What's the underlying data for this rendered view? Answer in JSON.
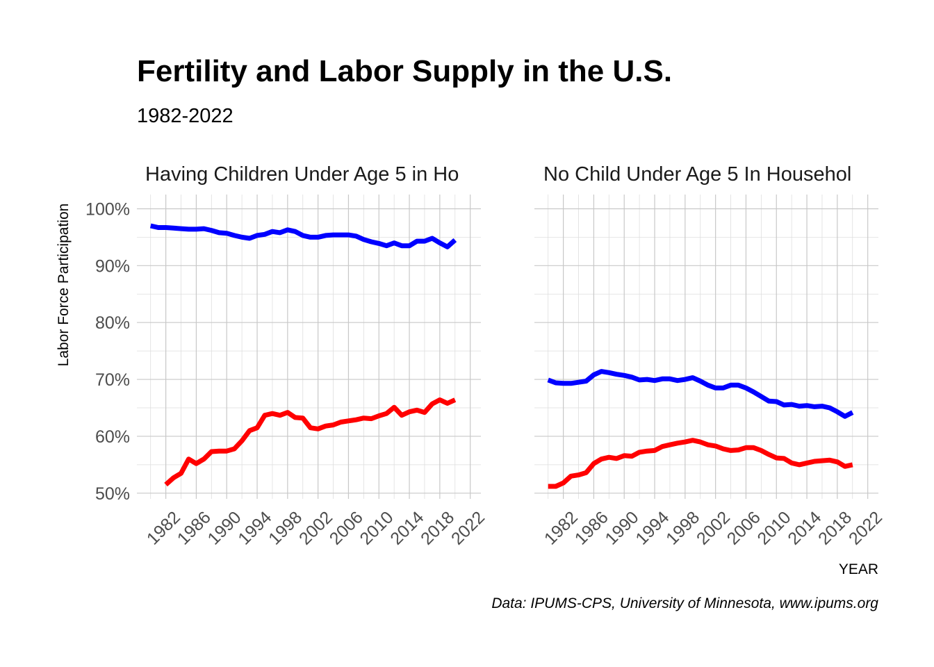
{
  "title": "Fertility and Labor Supply in the U.S.",
  "subtitle": "1982-2022",
  "caption": "Data: IPUMS-CPS, University of Minnesota, www.ipums.org",
  "chart_data": {
    "type": "line",
    "xlabel": "YEAR",
    "ylabel": "Labor Force Participation",
    "ylim": [
      0.49,
      1.025
    ],
    "xlim": [
      1978.2,
      2023.4
    ],
    "y_ticks": [
      {
        "value": 0.5,
        "label": "50%"
      },
      {
        "value": 0.6,
        "label": "60%"
      },
      {
        "value": 0.7,
        "label": "70%"
      },
      {
        "value": 0.8,
        "label": "80%"
      },
      {
        "value": 0.9,
        "label": "90%"
      },
      {
        "value": 1.0,
        "label": "100%"
      }
    ],
    "x_ticks": [
      {
        "value": 1982,
        "label": "1982"
      },
      {
        "value": 1986,
        "label": "1986"
      },
      {
        "value": 1990,
        "label": "1990"
      },
      {
        "value": 1994,
        "label": "1994"
      },
      {
        "value": 1998,
        "label": "1998"
      },
      {
        "value": 2002,
        "label": "2002"
      },
      {
        "value": 2006,
        "label": "2006"
      },
      {
        "value": 2010,
        "label": "2010"
      },
      {
        "value": 2014,
        "label": "2014"
      },
      {
        "value": 2018,
        "label": "2018"
      },
      {
        "value": 2022,
        "label": "2022"
      }
    ],
    "grid": true,
    "legend": "none",
    "panels": [
      {
        "label": "Having Children Under Age 5 in Ho",
        "series": [
          {
            "color": "#0000ff",
            "x": [
              1980,
              1981,
              1982,
              1983,
              1984,
              1985,
              1986,
              1987,
              1988,
              1989,
              1990,
              1991,
              1992,
              1993,
              1994,
              1995,
              1996,
              1997,
              1998,
              1999,
              2000,
              2001,
              2002,
              2003,
              2004,
              2005,
              2006,
              2007,
              2008,
              2009,
              2010,
              2011,
              2012,
              2013,
              2014,
              2015,
              2016,
              2017,
              2018,
              2019,
              2020
            ],
            "y": [
              0.97,
              0.967,
              0.967,
              0.966,
              0.965,
              0.964,
              0.964,
              0.965,
              0.962,
              0.958,
              0.957,
              0.953,
              0.95,
              0.948,
              0.953,
              0.955,
              0.96,
              0.958,
              0.963,
              0.96,
              0.953,
              0.95,
              0.95,
              0.953,
              0.954,
              0.954,
              0.954,
              0.952,
              0.946,
              0.942,
              0.939,
              0.935,
              0.94,
              0.935,
              0.935,
              0.943,
              0.943,
              0.948,
              0.94,
              0.933,
              0.945
            ]
          },
          {
            "color": "#ff0000",
            "x": [
              1982,
              1983,
              1984,
              1985,
              1986,
              1987,
              1988,
              1989,
              1990,
              1991,
              1992,
              1993,
              1994,
              1995,
              1996,
              1997,
              1998,
              1999,
              2000,
              2001,
              2002,
              2003,
              2004,
              2005,
              2006,
              2007,
              2008,
              2009,
              2010,
              2011,
              2012,
              2013,
              2014,
              2015,
              2016,
              2017,
              2018,
              2019,
              2020
            ],
            "y": [
              0.515,
              0.527,
              0.535,
              0.56,
              0.552,
              0.56,
              0.573,
              0.574,
              0.574,
              0.578,
              0.592,
              0.61,
              0.615,
              0.637,
              0.64,
              0.637,
              0.642,
              0.633,
              0.632,
              0.615,
              0.613,
              0.618,
              0.62,
              0.625,
              0.627,
              0.629,
              0.632,
              0.631,
              0.636,
              0.64,
              0.651,
              0.637,
              0.643,
              0.646,
              0.642,
              0.657,
              0.664,
              0.658,
              0.664
            ]
          }
        ]
      },
      {
        "label": "No Child Under Age 5 In Househol",
        "series": [
          {
            "color": "#0000ff",
            "x": [
              1980,
              1981,
              1982,
              1983,
              1984,
              1985,
              1986,
              1987,
              1988,
              1989,
              1990,
              1991,
              1992,
              1993,
              1994,
              1995,
              1996,
              1997,
              1998,
              1999,
              2000,
              2001,
              2002,
              2003,
              2004,
              2005,
              2006,
              2007,
              2008,
              2009,
              2010,
              2011,
              2012,
              2013,
              2014,
              2015,
              2016,
              2017,
              2018,
              2019,
              2020
            ],
            "y": [
              0.699,
              0.694,
              0.693,
              0.693,
              0.695,
              0.697,
              0.708,
              0.714,
              0.712,
              0.709,
              0.707,
              0.704,
              0.699,
              0.7,
              0.698,
              0.701,
              0.701,
              0.698,
              0.7,
              0.703,
              0.697,
              0.69,
              0.685,
              0.685,
              0.69,
              0.69,
              0.685,
              0.678,
              0.67,
              0.662,
              0.661,
              0.655,
              0.656,
              0.653,
              0.654,
              0.652,
              0.653,
              0.65,
              0.643,
              0.635,
              0.642
            ]
          },
          {
            "color": "#ff0000",
            "x": [
              1980,
              1981,
              1982,
              1983,
              1984,
              1985,
              1986,
              1987,
              1988,
              1989,
              1990,
              1991,
              1992,
              1993,
              1994,
              1995,
              1996,
              1997,
              1998,
              1999,
              2000,
              2001,
              2002,
              2003,
              2004,
              2005,
              2006,
              2007,
              2008,
              2009,
              2010,
              2011,
              2012,
              2013,
              2014,
              2015,
              2016,
              2017,
              2018,
              2019,
              2020
            ],
            "y": [
              0.512,
              0.512,
              0.518,
              0.53,
              0.532,
              0.536,
              0.552,
              0.56,
              0.563,
              0.561,
              0.566,
              0.565,
              0.572,
              0.574,
              0.575,
              0.582,
              0.585,
              0.588,
              0.59,
              0.593,
              0.59,
              0.585,
              0.583,
              0.578,
              0.575,
              0.576,
              0.58,
              0.58,
              0.575,
              0.568,
              0.562,
              0.561,
              0.553,
              0.55,
              0.553,
              0.556,
              0.557,
              0.558,
              0.555,
              0.547,
              0.55
            ]
          }
        ]
      }
    ]
  }
}
